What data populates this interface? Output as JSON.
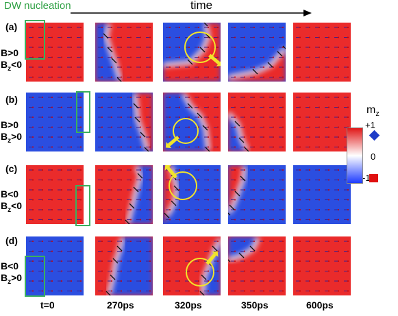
{
  "header": {
    "nucleation_label": "DW nucleation",
    "time_label": "time"
  },
  "rows": [
    {
      "letter": "(a)",
      "cond1": "B>0",
      "cond2_base": "B",
      "cond2_sub": "z",
      "cond2_rel": "<0"
    },
    {
      "letter": "(b)",
      "cond1": "B>0",
      "cond2_base": "B",
      "cond2_sub": "z",
      "cond2_rel": ">0"
    },
    {
      "letter": "(c)",
      "cond1": "B<0",
      "cond2_base": "B",
      "cond2_sub": "z",
      "cond2_rel": "<0"
    },
    {
      "letter": "(d)",
      "cond1": "B<0",
      "cond2_base": "B",
      "cond2_sub": "z",
      "cond2_rel": ">0"
    }
  ],
  "time_labels": [
    "t=0",
    "270ps",
    "320ps",
    "350ps",
    "600ps"
  ],
  "colorbar": {
    "title_base": "m",
    "title_sub": "z",
    "max_label": "+1",
    "mid_label": "0",
    "min_label": "-1"
  },
  "colors": {
    "red": "#ea2b2b",
    "blue": "#2b4ee0",
    "nucleation_box": "#3bb05e",
    "vortex_circle": "#f2e42a"
  }
}
